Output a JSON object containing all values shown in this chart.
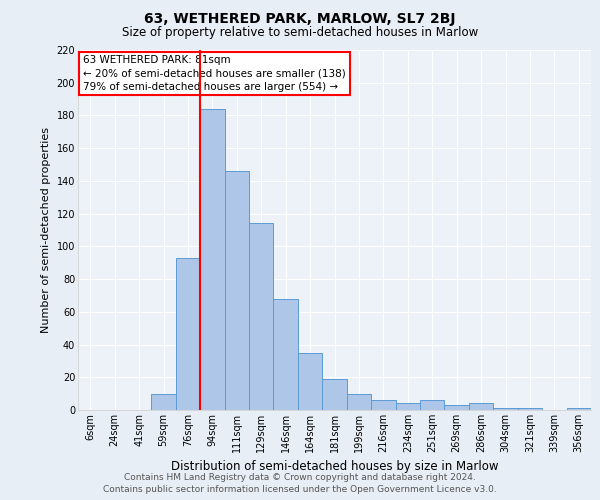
{
  "title": "63, WETHERED PARK, MARLOW, SL7 2BJ",
  "subtitle": "Size of property relative to semi-detached houses in Marlow",
  "xlabel": "Distribution of semi-detached houses by size in Marlow",
  "ylabel": "Number of semi-detached properties",
  "categories": [
    "6sqm",
    "24sqm",
    "41sqm",
    "59sqm",
    "76sqm",
    "94sqm",
    "111sqm",
    "129sqm",
    "146sqm",
    "164sqm",
    "181sqm",
    "199sqm",
    "216sqm",
    "234sqm",
    "251sqm",
    "269sqm",
    "286sqm",
    "304sqm",
    "321sqm",
    "339sqm",
    "356sqm"
  ],
  "values": [
    0,
    0,
    0,
    10,
    93,
    184,
    146,
    114,
    68,
    35,
    19,
    10,
    6,
    4,
    6,
    3,
    4,
    1,
    1,
    0,
    1
  ],
  "bar_color": "#aec6e8",
  "bar_edge_color": "#5b9bd5",
  "vline_color": "#ff0000",
  "vline_x_index": 4,
  "ylim": [
    0,
    220
  ],
  "yticks": [
    0,
    20,
    40,
    60,
    80,
    100,
    120,
    140,
    160,
    180,
    200,
    220
  ],
  "annotation_title": "63 WETHERED PARK: 81sqm",
  "annotation_line1": "← 20% of semi-detached houses are smaller (138)",
  "annotation_line2": "79% of semi-detached houses are larger (554) →",
  "annotation_box_color": "#ffffff",
  "annotation_box_edge": "#ff0000",
  "footer_line1": "Contains HM Land Registry data © Crown copyright and database right 2024.",
  "footer_line2": "Contains public sector information licensed under the Open Government Licence v3.0.",
  "bg_color": "#e8eef5",
  "plot_bg_color": "#edf2f8",
  "grid_color": "#ffffff",
  "title_fontsize": 10,
  "subtitle_fontsize": 8.5,
  "xlabel_fontsize": 8.5,
  "ylabel_fontsize": 8,
  "tick_fontsize": 7,
  "annotation_fontsize": 7.5,
  "footer_fontsize": 6.5
}
